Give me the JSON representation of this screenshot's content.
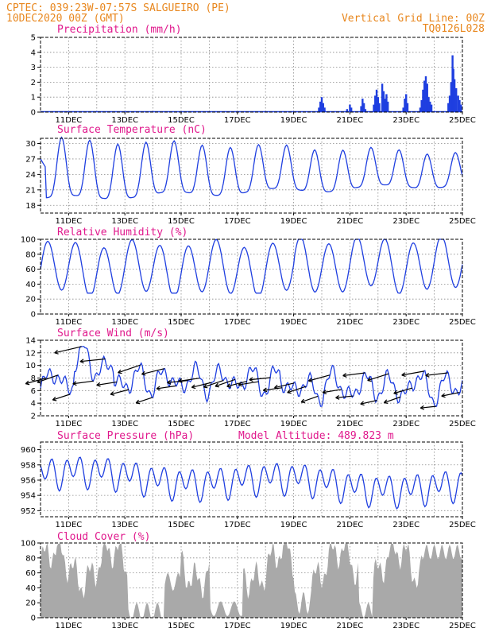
{
  "header": {
    "line1_left": "CPTEC:   039:23W-07:57S  SALGUEIRO (PE)",
    "line2_left": "10DEC2020 00Z (GMT)",
    "line1_right": "Vertical Grid Line: 00Z",
    "line2_right": "TQ0126L028"
  },
  "x_ticks": [
    "11DEC",
    "13DEC",
    "15DEC",
    "17DEC",
    "19DEC",
    "21DEC",
    "23DEC",
    "25DEC"
  ],
  "colors": {
    "line": "#1f3fe0",
    "bar": "#1f3fe0",
    "cloud": "#a9a9a9",
    "title": "#e0188c",
    "header": "#e8871e"
  },
  "chart_data": [
    {
      "id": "precip",
      "type": "bar",
      "title": "Precipitation (mm/h)",
      "ylim": [
        0,
        5
      ],
      "yticks": [
        0,
        1,
        2,
        3,
        4,
        5
      ],
      "x_start_days": 0,
      "x_end_days": 15,
      "points": [
        [
          9.9,
          0.3
        ],
        [
          9.95,
          0.7
        ],
        [
          10.0,
          1.0
        ],
        [
          10.05,
          0.6
        ],
        [
          10.1,
          0.3
        ],
        [
          10.9,
          0.2
        ],
        [
          11.0,
          0.5
        ],
        [
          11.05,
          0.3
        ],
        [
          11.4,
          0.4
        ],
        [
          11.45,
          0.9
        ],
        [
          11.5,
          0.6
        ],
        [
          11.55,
          0.2
        ],
        [
          11.85,
          0.5
        ],
        [
          11.9,
          1.1
        ],
        [
          11.95,
          1.5
        ],
        [
          12.0,
          1.0
        ],
        [
          12.05,
          0.6
        ],
        [
          12.15,
          1.9
        ],
        [
          12.2,
          1.4
        ],
        [
          12.25,
          0.9
        ],
        [
          12.3,
          1.2
        ],
        [
          12.35,
          0.7
        ],
        [
          12.9,
          0.3
        ],
        [
          12.95,
          0.9
        ],
        [
          13.0,
          1.2
        ],
        [
          13.05,
          0.6
        ],
        [
          13.5,
          0.3
        ],
        [
          13.55,
          0.8
        ],
        [
          13.6,
          1.5
        ],
        [
          13.65,
          2.1
        ],
        [
          13.7,
          2.4
        ],
        [
          13.75,
          1.9
        ],
        [
          13.8,
          1.0
        ],
        [
          13.85,
          0.7
        ],
        [
          13.9,
          0.5
        ],
        [
          14.5,
          0.6
        ],
        [
          14.55,
          1.1
        ],
        [
          14.6,
          2.0
        ],
        [
          14.65,
          3.8
        ],
        [
          14.68,
          2.9
        ],
        [
          14.72,
          2.2
        ],
        [
          14.78,
          1.6
        ],
        [
          14.85,
          1.1
        ],
        [
          14.9,
          0.8
        ],
        [
          14.95,
          0.5
        ]
      ]
    },
    {
      "id": "temp",
      "type": "line",
      "title": "Surface Temperature (nC)",
      "ylim": [
        16.5,
        31
      ],
      "yticks": [
        18,
        21,
        24,
        27,
        30
      ],
      "x_start_days": 0,
      "x_end_days": 15,
      "points": []
    },
    {
      "id": "rh",
      "type": "line",
      "title": "Relative Humidity (%)",
      "ylim": [
        0,
        100
      ],
      "yticks": [
        0,
        20,
        40,
        60,
        80,
        100
      ],
      "x_start_days": 0,
      "x_end_days": 15,
      "points": []
    },
    {
      "id": "wind",
      "type": "line",
      "title": "Surface Wind (m/s)",
      "ylim": [
        2,
        14
      ],
      "yticks": [
        2,
        4,
        6,
        8,
        10,
        12,
        14
      ],
      "x_start_days": 0,
      "x_end_days": 15,
      "points": []
    },
    {
      "id": "pres",
      "type": "line",
      "title": "Surface Pressure (hPa)",
      "subtitle": "Model Altitude: 489.823 m",
      "ylim": [
        951.2,
        961
      ],
      "yticks": [
        952,
        954,
        956,
        958,
        960
      ],
      "x_start_days": 0,
      "x_end_days": 15,
      "points": []
    },
    {
      "id": "cloud",
      "type": "area",
      "title": "Cloud Cover (%)",
      "ylim": [
        0,
        100
      ],
      "yticks": [
        0,
        20,
        40,
        60,
        80,
        100
      ],
      "x_start_days": 0,
      "x_end_days": 15,
      "points": []
    }
  ]
}
